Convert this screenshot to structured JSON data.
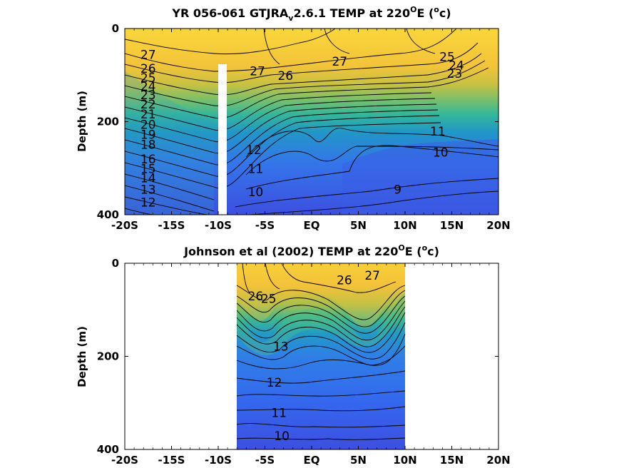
{
  "chart_data": [
    {
      "type": "heatmap",
      "title": "YR 056-061 GTJRA",
      "title_sub": "v",
      "title_rest": "2.6.1 TEMP at 220",
      "title_sup": "O",
      "title_tail": "E (",
      "title_sup2": "o",
      "title_end": "c)",
      "ylabel": "Depth (m)",
      "xlim": [
        -20,
        20
      ],
      "ylim": [
        0,
        400
      ],
      "x_ticks": [
        "-20S",
        "-15S",
        "-10S",
        "-5S",
        "EQ",
        "5N",
        "10N",
        "15N",
        "20N"
      ],
      "y_ticks": [
        "0",
        "200",
        "400"
      ],
      "data_extent": [
        -20,
        20
      ],
      "gap_latitude": -10,
      "gap_depth_start": 80,
      "contour_labels": [
        {
          "text": "27",
          "lat": -17.5,
          "depth": 65
        },
        {
          "text": "26",
          "lat": -17.5,
          "depth": 95
        },
        {
          "text": "25",
          "lat": -17.5,
          "depth": 115
        },
        {
          "text": "24",
          "lat": -17.5,
          "depth": 133
        },
        {
          "text": "23",
          "lat": -17.5,
          "depth": 152
        },
        {
          "text": "22",
          "lat": -17.5,
          "depth": 172
        },
        {
          "text": "21",
          "lat": -17.5,
          "depth": 193
        },
        {
          "text": "20",
          "lat": -17.5,
          "depth": 215
        },
        {
          "text": "19",
          "lat": -17.5,
          "depth": 237
        },
        {
          "text": "18",
          "lat": -17.5,
          "depth": 258
        },
        {
          "text": "16",
          "lat": -17.5,
          "depth": 290
        },
        {
          "text": "15",
          "lat": -17.5,
          "depth": 310
        },
        {
          "text": "14",
          "lat": -17.5,
          "depth": 330
        },
        {
          "text": "13",
          "lat": -17.5,
          "depth": 355
        },
        {
          "text": "12",
          "lat": -17.5,
          "depth": 382
        },
        {
          "text": "27",
          "lat": -5.8,
          "depth": 100
        },
        {
          "text": "26",
          "lat": -2.8,
          "depth": 110
        },
        {
          "text": "27",
          "lat": 3.0,
          "depth": 80
        },
        {
          "text": "25",
          "lat": 14.5,
          "depth": 70
        },
        {
          "text": "24",
          "lat": 15.5,
          "depth": 88
        },
        {
          "text": "23",
          "lat": 15.3,
          "depth": 106
        },
        {
          "text": "11",
          "lat": -6.0,
          "depth": 310
        },
        {
          "text": "10",
          "lat": -6.0,
          "depth": 360
        },
        {
          "text": "12",
          "lat": -6.2,
          "depth": 270
        },
        {
          "text": "9",
          "lat": 9.2,
          "depth": 355
        },
        {
          "text": "11",
          "lat": 13.5,
          "depth": 230
        },
        {
          "text": "10",
          "lat": 13.8,
          "depth": 275
        }
      ]
    },
    {
      "type": "heatmap",
      "title": "Johnson et al (2002) TEMP at 220",
      "title_sup": "O",
      "title_tail": "E (",
      "title_sup2": "o",
      "title_end": "c)",
      "ylabel": "Depth (m)",
      "xlim": [
        -20,
        20
      ],
      "ylim": [
        0,
        400
      ],
      "x_ticks": [
        "-20S",
        "-15S",
        "-10S",
        "-5S",
        "EQ",
        "5N",
        "10N",
        "15N",
        "20N"
      ],
      "y_ticks": [
        "0",
        "200",
        "400"
      ],
      "data_extent": [
        -8,
        10
      ],
      "contour_labels": [
        {
          "text": "26",
          "lat": -6.0,
          "depth": 80
        },
        {
          "text": "25",
          "lat": -4.6,
          "depth": 85
        },
        {
          "text": "27",
          "lat": 6.5,
          "depth": 35
        },
        {
          "text": "26",
          "lat": 3.5,
          "depth": 45
        },
        {
          "text": "13",
          "lat": -3.3,
          "depth": 188
        },
        {
          "text": "12",
          "lat": -4.0,
          "depth": 265
        },
        {
          "text": "11",
          "lat": -3.5,
          "depth": 330
        },
        {
          "text": "10",
          "lat": -3.2,
          "depth": 380
        }
      ]
    }
  ]
}
